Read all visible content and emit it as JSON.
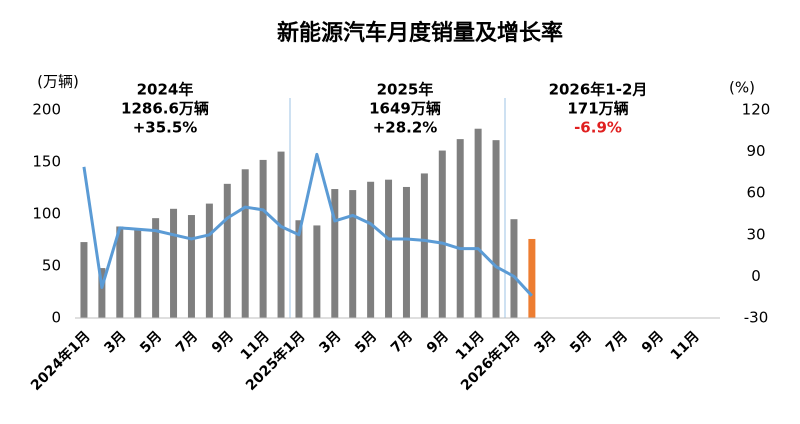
{
  "chart_data": {
    "type": "bar-line",
    "title": "新能源汽车月度销量及增长率",
    "y_label": "(万辆)",
    "y2_label": "(%)",
    "categories": [
      "2024年1月",
      null,
      "3月",
      null,
      "5月",
      null,
      "7月",
      null,
      "9月",
      null,
      "11月",
      null,
      "2025年1月",
      null,
      "3月",
      null,
      "5月",
      null,
      "7月",
      null,
      "9月",
      null,
      "11月",
      null,
      "2026年1月",
      null,
      "3月",
      null,
      "5月",
      null,
      "7月",
      null,
      "9月",
      null,
      "11月",
      null
    ],
    "series": [
      {
        "type": "bar",
        "color": "#7f7f7f",
        "highlight_color": "#ed7d31",
        "highlight_index": 25,
        "values": [
          73,
          48,
          88,
          85,
          96,
          105,
          99,
          110,
          129,
          143,
          152,
          160,
          94,
          89,
          124,
          123,
          131,
          133,
          126,
          139,
          161,
          172,
          182,
          171,
          95,
          76,
          null,
          null,
          null,
          null,
          null,
          null,
          null,
          null,
          null,
          null
        ]
      },
      {
        "type": "line",
        "axis": "y2",
        "color": "#5b9bd5",
        "values": [
          79,
          -8,
          35,
          34,
          33,
          30,
          27,
          30,
          42,
          50,
          48,
          36,
          30,
          88,
          40,
          44,
          38,
          27,
          27,
          26,
          24,
          20,
          20,
          7,
          0,
          -14,
          null,
          null,
          null,
          null,
          null,
          null,
          null,
          null,
          null,
          null
        ]
      }
    ],
    "ylim": [
      0,
      200
    ],
    "yticks": [
      0,
      50,
      100,
      150,
      200
    ],
    "y2lim": [
      -30,
      120
    ],
    "y2ticks": [
      -30,
      0,
      30,
      60,
      90,
      120
    ],
    "annotations": [
      {
        "lines": [
          "2024年",
          "1286.6万辆",
          "+35.5%"
        ]
      },
      {
        "lines": [
          "2025年",
          "1649万辆",
          "+28.2%"
        ]
      },
      {
        "lines": [
          "2026年1-2月",
          "171万辆",
          "-6.9%"
        ],
        "highlight_color": "#e02020"
      }
    ]
  }
}
